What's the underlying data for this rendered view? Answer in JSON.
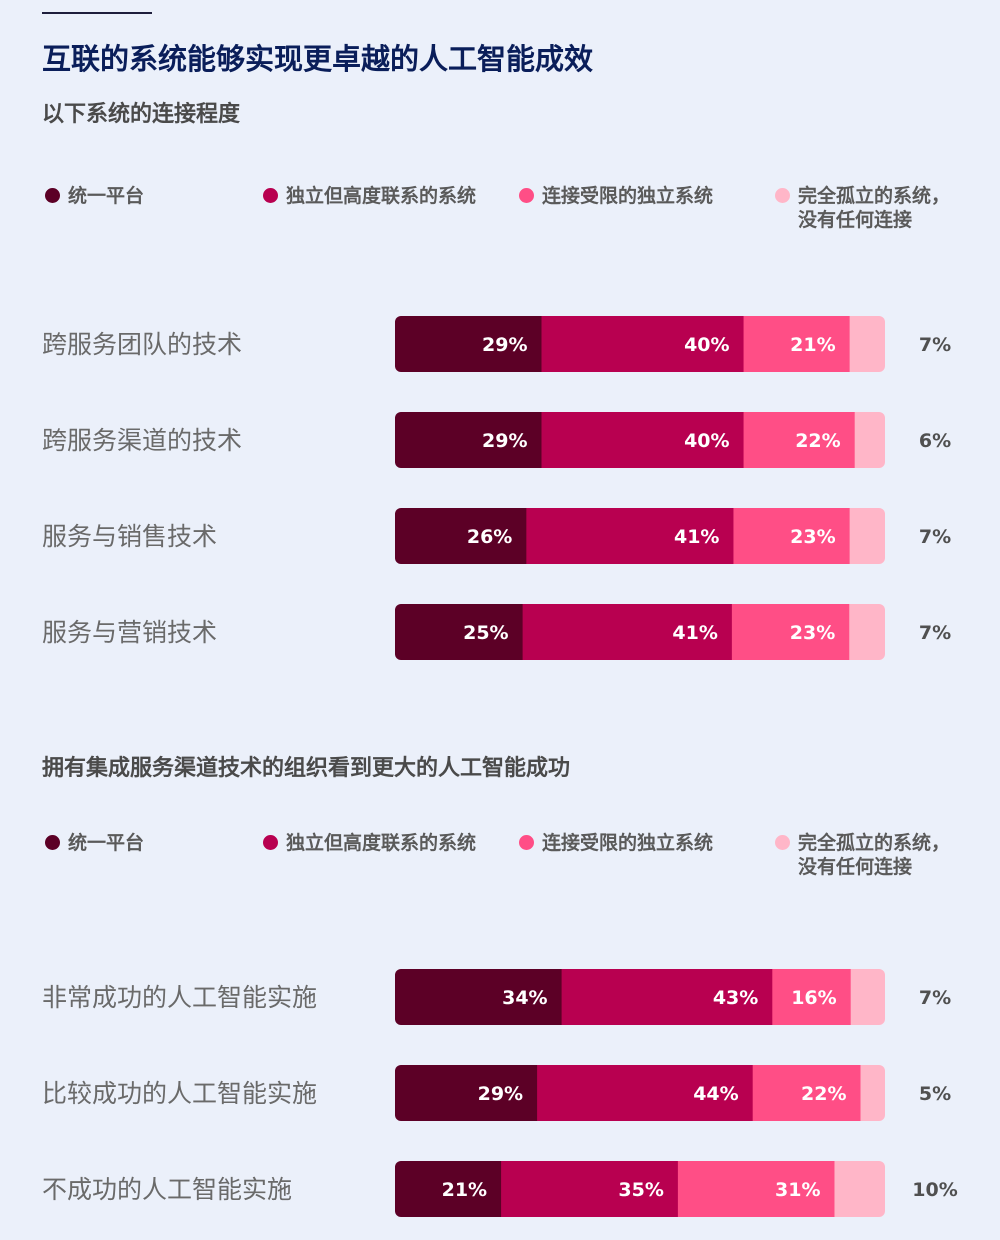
{
  "title": "互联的系统能够实现更卓越的人工智能成效",
  "colors": {
    "unified": "#5C0026",
    "independent_connected": "#B80050",
    "limited": "#FF4E86",
    "isolated": "#FFB6C8",
    "label_text": "#6A6A6A",
    "outside_value_text": "#505050"
  },
  "chart_data": [
    {
      "type": "bar",
      "orientation": "horizontal",
      "stacked": true,
      "title": "以下系统的连接程度",
      "legend": {
        "placement": "top",
        "items": [
          {
            "label": "统一平台",
            "label2": ""
          },
          {
            "label": "独立但高度联系的系统",
            "label2": ""
          },
          {
            "label": "连接受限的独立系统",
            "label2": ""
          },
          {
            "label": "完全孤立的系统，",
            "label2": "没有任何连接"
          }
        ]
      },
      "categories": [
        "跨服务团队的技术",
        "跨服务渠道的技术",
        "服务与销售技术",
        "服务与营销技术"
      ],
      "series": [
        {
          "name": "统一平台",
          "values": [
            29,
            29,
            26,
            25
          ]
        },
        {
          "name": "独立但高度联系的系统",
          "values": [
            40,
            40,
            41,
            41
          ]
        },
        {
          "name": "连接受限的独立系统",
          "values": [
            21,
            22,
            23,
            23
          ]
        },
        {
          "name": "完全孤立的系统，没有任何连接",
          "values": [
            7,
            6,
            7,
            7
          ]
        }
      ],
      "unit": "%"
    },
    {
      "type": "bar",
      "orientation": "horizontal",
      "stacked": true,
      "title": "拥有集成服务渠道技术的组织看到更大的人工智能成功",
      "legend": {
        "placement": "top",
        "items": [
          {
            "label": "统一平台",
            "label2": ""
          },
          {
            "label": "独立但高度联系的系统",
            "label2": ""
          },
          {
            "label": "连接受限的独立系统",
            "label2": ""
          },
          {
            "label": "完全孤立的系统，",
            "label2": "没有任何连接"
          }
        ]
      },
      "categories": [
        "非常成功的人工智能实施",
        "比较成功的人工智能实施",
        "不成功的人工智能实施"
      ],
      "series": [
        {
          "name": "统一平台",
          "values": [
            34,
            29,
            21
          ]
        },
        {
          "name": "独立但高度联系的系统",
          "values": [
            43,
            44,
            35
          ]
        },
        {
          "name": "连接受限的独立系统",
          "values": [
            16,
            22,
            31
          ]
        },
        {
          "name": "完全孤立的系统，没有任何连接",
          "values": [
            7,
            5,
            10
          ]
        }
      ],
      "unit": "%"
    }
  ]
}
